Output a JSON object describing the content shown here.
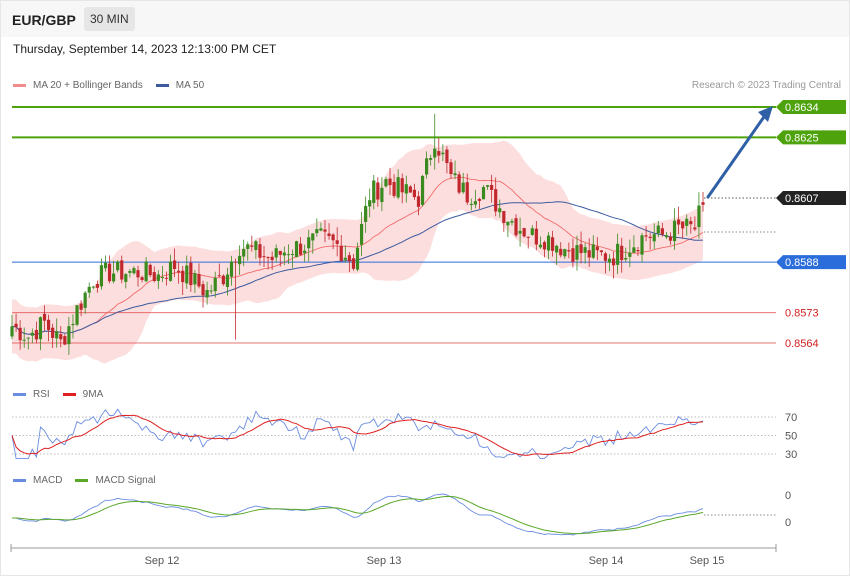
{
  "header": {
    "symbol": "EUR/GBP",
    "timeframe": "30 MIN"
  },
  "datetime": "Thursday, September 14, 2023 12:13:00 PM CET",
  "credit": "Research © 2023 Trading Central",
  "colors": {
    "up_candle": "#3a8a1f",
    "down_candle": "#c0282d",
    "band_fill": "#fcd3d3",
    "ma20": "#f26b6b",
    "ma50": "#3c5b9e",
    "resistance": "#4ea30d",
    "pivot": "#2b6ddb",
    "support": "#e03a3a",
    "last_price": "#222222",
    "arrow": "#2f5fa6",
    "rsi": "#6a8ce0",
    "rsi_ma": "#e02020",
    "macd": "#6a8ce0",
    "macd_signal": "#5aa82a"
  },
  "main_legend": [
    {
      "label": "MA 20 + Bollinger Bands",
      "color": "#f28b8b"
    },
    {
      "label": "MA 50",
      "color": "#3c5b9e"
    }
  ],
  "rsi_legend": [
    {
      "label": "RSI",
      "color": "#6a8ce0"
    },
    {
      "label": "9MA",
      "color": "#e02020"
    }
  ],
  "macd_legend": [
    {
      "label": "MACD",
      "color": "#6a8ce0"
    },
    {
      "label": "MACD Signal",
      "color": "#5aa82a"
    }
  ],
  "levels": [
    {
      "value": 0.8634,
      "label": "0.8634",
      "type": "resistance"
    },
    {
      "value": 0.8625,
      "label": "0.8625",
      "type": "resistance"
    },
    {
      "value": 0.8607,
      "label": "0.8607",
      "type": "last_price"
    },
    {
      "value": 0.8588,
      "label": "0.8588",
      "type": "pivot"
    },
    {
      "value": 0.8573,
      "label": "0.8573",
      "type": "support"
    },
    {
      "value": 0.8564,
      "label": "0.8564",
      "type": "support"
    }
  ],
  "rsi_levels": [
    "70",
    "50",
    "30"
  ],
  "macd_levels": [
    "0",
    "0"
  ],
  "chart_data": {
    "type": "candlestick",
    "x_labels": [
      "Sep 12",
      "Sep 13",
      "Sep 14",
      "Sep 15"
    ],
    "ylim": [
      0.8556,
      0.864
    ],
    "price_anchors": [
      [
        0,
        0.8569
      ],
      [
        4,
        0.8566
      ],
      [
        8,
        0.857
      ],
      [
        12,
        0.8564
      ],
      [
        16,
        0.8574
      ],
      [
        20,
        0.8583
      ],
      [
        24,
        0.8585
      ],
      [
        28,
        0.8585
      ],
      [
        32,
        0.8585
      ],
      [
        36,
        0.8584
      ],
      [
        40,
        0.8587
      ],
      [
        44,
        0.8583
      ],
      [
        48,
        0.8579
      ],
      [
        52,
        0.8584
      ],
      [
        56,
        0.8593
      ],
      [
        60,
        0.8591
      ],
      [
        64,
        0.8589
      ],
      [
        68,
        0.8592
      ],
      [
        72,
        0.8593
      ],
      [
        76,
        0.8595
      ],
      [
        80,
        0.8593
      ],
      [
        84,
        0.8588
      ],
      [
        88,
        0.8608
      ],
      [
        92,
        0.8612
      ],
      [
        96,
        0.8609
      ],
      [
        100,
        0.8607
      ],
      [
        104,
        0.8625
      ],
      [
        108,
        0.8613
      ],
      [
        112,
        0.8608
      ],
      [
        116,
        0.861
      ],
      [
        120,
        0.8604
      ],
      [
        124,
        0.8599
      ],
      [
        128,
        0.8596
      ],
      [
        132,
        0.8595
      ],
      [
        136,
        0.8592
      ],
      [
        140,
        0.8591
      ],
      [
        144,
        0.859
      ],
      [
        148,
        0.859
      ],
      [
        152,
        0.8593
      ],
      [
        156,
        0.8596
      ],
      [
        160,
        0.8596
      ],
      [
        164,
        0.8598
      ],
      [
        168,
        0.8598
      ],
      [
        170,
        0.8605
      ]
    ],
    "candle_count": 171,
    "projection": {
      "from": 0.8607,
      "to": 0.8634
    },
    "rsi_ylim": [
      20,
      80
    ],
    "rsi_ticks": [
      70,
      50,
      30
    ]
  }
}
